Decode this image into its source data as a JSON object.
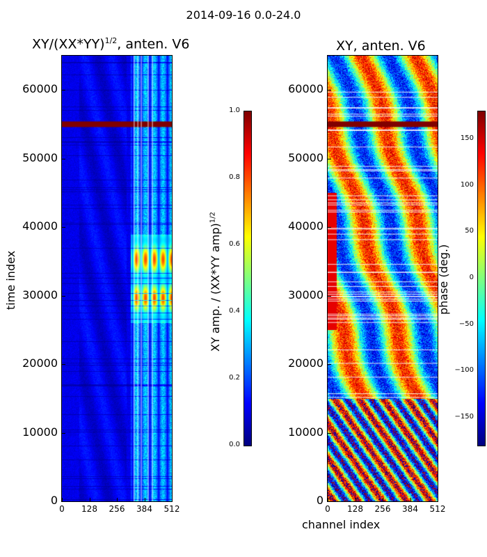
{
  "figure": {
    "suptitle": "2014-09-16 0.0-24.0"
  },
  "chart_data": [
    {
      "type": "heatmap",
      "title_prefix": "XY/(XX*YY)",
      "title_exponent": "1/2",
      "title_suffix": ", anten. V6",
      "xlabel": "",
      "ylabel": "time index",
      "xlim": [
        0,
        512
      ],
      "ylim": [
        0,
        65000
      ],
      "xticks": [
        0,
        128,
        256,
        384,
        512
      ],
      "yticks": [
        0,
        10000,
        20000,
        30000,
        40000,
        50000,
        60000
      ],
      "colormap": "jet",
      "colorbar": {
        "label_prefix": "XY amp. / (XX*YY amp)",
        "label_exponent": "1/2",
        "range": [
          0.0,
          1.0
        ],
        "ticks": [
          "0.0",
          "0.2",
          "0.4",
          "0.6",
          "0.8",
          "1.0"
        ]
      }
    },
    {
      "type": "heatmap",
      "title": "XY, anten. V6",
      "xlabel": "channel index",
      "ylabel": "",
      "xlim": [
        0,
        512
      ],
      "ylim": [
        0,
        65000
      ],
      "xticks": [
        0,
        128,
        256,
        384,
        512
      ],
      "yticks": [
        0,
        10000,
        20000,
        30000,
        40000,
        50000,
        60000
      ],
      "colormap": "jet",
      "colorbar": {
        "label": "phase (deg.)",
        "range": [
          -180,
          180
        ],
        "ticks": [
          -150,
          -100,
          -50,
          0,
          50,
          100,
          150
        ]
      }
    }
  ]
}
